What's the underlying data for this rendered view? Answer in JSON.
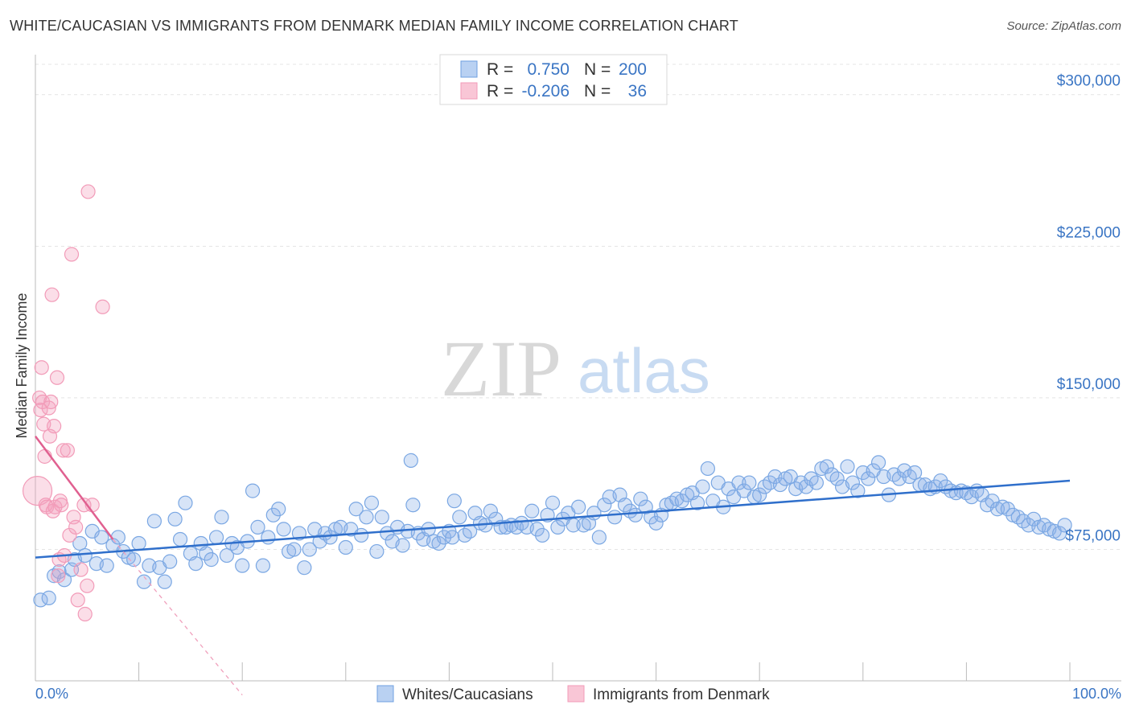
{
  "header": {
    "title": "WHITE/CAUCASIAN VS IMMIGRANTS FROM DENMARK MEDIAN FAMILY INCOME CORRELATION CHART",
    "source": "Source: ZipAtlas.com"
  },
  "watermark": {
    "zip": "ZIP",
    "atlas": "atlas"
  },
  "legend_top": {
    "rows": [
      {
        "r_label": "R =",
        "r_value": "0.750",
        "n_label": "N =",
        "n_value": "200"
      },
      {
        "r_label": "R =",
        "r_value": "-0.206",
        "n_label": "N =",
        "n_value": "36"
      }
    ]
  },
  "chart_data": {
    "type": "scatter",
    "ylabel": "Median Family Income",
    "xlim": [
      0,
      100
    ],
    "ylim": [
      10000,
      315000
    ],
    "y_tick_values": [
      75000,
      150000,
      225000,
      300000
    ],
    "y_tick_labels": [
      "$75,000",
      "$150,000",
      "$225,000",
      "$300,000"
    ],
    "x_tick_labels": [
      "0.0%",
      "100.0%"
    ],
    "grid": true,
    "legend_placement": "top-center",
    "series": [
      {
        "name": "Whites/Caucasians",
        "color": "#6fa0e0",
        "line_color": "#2f6fcb",
        "r": 0.75,
        "n": 200,
        "trend": {
          "x": [
            0,
            100
          ],
          "y": [
            71000,
            109000
          ]
        },
        "points": [
          [
            0.5,
            50000
          ],
          [
            1.3,
            51000
          ],
          [
            1.8,
            62000
          ],
          [
            2.3,
            64000
          ],
          [
            2.8,
            60000
          ],
          [
            3.5,
            65000
          ],
          [
            3.8,
            70000
          ],
          [
            4.3,
            78000
          ],
          [
            4.8,
            72000
          ],
          [
            5.5,
            84000
          ],
          [
            5.9,
            68000
          ],
          [
            6.4,
            81000
          ],
          [
            6.9,
            67000
          ],
          [
            7.5,
            77000
          ],
          [
            8,
            81000
          ],
          [
            8.5,
            74000
          ],
          [
            9,
            71000
          ],
          [
            9.5,
            70000
          ],
          [
            10,
            78000
          ],
          [
            10.5,
            59000
          ],
          [
            11,
            67000
          ],
          [
            11.5,
            89000
          ],
          [
            12,
            66000
          ],
          [
            12.5,
            59000
          ],
          [
            13,
            69000
          ],
          [
            13.5,
            90000
          ],
          [
            14,
            80000
          ],
          [
            14.5,
            98000
          ],
          [
            15,
            73000
          ],
          [
            15.5,
            68000
          ],
          [
            16,
            78000
          ],
          [
            16.5,
            73000
          ],
          [
            17,
            70000
          ],
          [
            17.5,
            81000
          ],
          [
            18,
            91000
          ],
          [
            18.5,
            72000
          ],
          [
            19,
            78000
          ],
          [
            19.5,
            76000
          ],
          [
            20,
            67000
          ],
          [
            20.5,
            79000
          ],
          [
            21,
            104000
          ],
          [
            21.5,
            86000
          ],
          [
            22,
            67000
          ],
          [
            22.5,
            81000
          ],
          [
            23,
            92000
          ],
          [
            23.5,
            95000
          ],
          [
            24,
            85000
          ],
          [
            24.5,
            74000
          ],
          [
            25,
            75000
          ],
          [
            25.5,
            83000
          ],
          [
            26,
            66000
          ],
          [
            26.5,
            75000
          ],
          [
            27,
            85000
          ],
          [
            27.5,
            79000
          ],
          [
            28,
            83000
          ],
          [
            28.5,
            81000
          ],
          [
            29,
            85000
          ],
          [
            29.5,
            86000
          ],
          [
            30,
            76000
          ],
          [
            30.5,
            85000
          ],
          [
            31,
            95000
          ],
          [
            31.5,
            82000
          ],
          [
            32,
            91000
          ],
          [
            32.5,
            98000
          ],
          [
            33,
            74000
          ],
          [
            33.5,
            91000
          ],
          [
            34,
            83000
          ],
          [
            34.5,
            79000
          ],
          [
            35,
            86000
          ],
          [
            35.5,
            77000
          ],
          [
            36,
            84000
          ],
          [
            36.5,
            97000
          ],
          [
            37,
            83000
          ],
          [
            37.5,
            80000
          ],
          [
            38,
            85000
          ],
          [
            38.5,
            79000
          ],
          [
            39,
            78000
          ],
          [
            39.5,
            81000
          ],
          [
            40,
            84000
          ],
          [
            40.5,
            99000
          ],
          [
            41,
            91000
          ],
          [
            41.5,
            82000
          ],
          [
            42,
            84000
          ],
          [
            42.5,
            93000
          ],
          [
            43,
            88000
          ],
          [
            43.5,
            87000
          ],
          [
            44,
            94000
          ],
          [
            44.5,
            90000
          ],
          [
            45,
            86000
          ],
          [
            45.5,
            86000
          ],
          [
            46,
            87000
          ],
          [
            46.5,
            86000
          ],
          [
            47,
            88000
          ],
          [
            47.5,
            86000
          ],
          [
            48,
            94000
          ],
          [
            48.5,
            85000
          ],
          [
            49,
            82000
          ],
          [
            49.5,
            92000
          ],
          [
            50,
            98000
          ],
          [
            50.5,
            86000
          ],
          [
            51,
            90000
          ],
          [
            51.5,
            93000
          ],
          [
            52,
            87000
          ],
          [
            52.5,
            96000
          ],
          [
            53,
            87000
          ],
          [
            53.5,
            88000
          ],
          [
            54,
            93000
          ],
          [
            54.5,
            81000
          ],
          [
            55,
            97000
          ],
          [
            55.5,
            101000
          ],
          [
            56,
            91000
          ],
          [
            56.5,
            102000
          ],
          [
            57,
            97000
          ],
          [
            57.5,
            94000
          ],
          [
            58,
            92000
          ],
          [
            58.5,
            100000
          ],
          [
            59,
            96000
          ],
          [
            59.5,
            91000
          ],
          [
            60,
            88000
          ],
          [
            60.5,
            92000
          ],
          [
            61,
            97000
          ],
          [
            61.5,
            98000
          ],
          [
            62,
            100000
          ],
          [
            62.5,
            99000
          ],
          [
            63,
            102000
          ],
          [
            63.5,
            103000
          ],
          [
            64,
            98000
          ],
          [
            64.5,
            106000
          ],
          [
            65,
            115000
          ],
          [
            65.5,
            99000
          ],
          [
            66,
            108000
          ],
          [
            66.5,
            96000
          ],
          [
            67,
            105000
          ],
          [
            67.5,
            101000
          ],
          [
            68,
            108000
          ],
          [
            68.5,
            104000
          ],
          [
            69,
            108000
          ],
          [
            69.5,
            101000
          ],
          [
            70,
            102000
          ],
          [
            70.5,
            106000
          ],
          [
            71,
            108000
          ],
          [
            71.5,
            111000
          ],
          [
            72,
            107000
          ],
          [
            72.5,
            110000
          ],
          [
            73,
            111000
          ],
          [
            73.5,
            105000
          ],
          [
            74,
            108000
          ],
          [
            74.5,
            106000
          ],
          [
            75,
            110000
          ],
          [
            75.5,
            108000
          ],
          [
            76,
            115000
          ],
          [
            76.5,
            116000
          ],
          [
            77,
            112000
          ],
          [
            77.5,
            110000
          ],
          [
            78,
            106000
          ],
          [
            78.5,
            116000
          ],
          [
            79,
            108000
          ],
          [
            79.5,
            104000
          ],
          [
            80,
            113000
          ],
          [
            80.5,
            110000
          ],
          [
            81,
            114000
          ],
          [
            81.5,
            118000
          ],
          [
            82,
            111000
          ],
          [
            82.5,
            102000
          ],
          [
            83,
            112000
          ],
          [
            83.5,
            110000
          ],
          [
            84,
            114000
          ],
          [
            84.5,
            111000
          ],
          [
            85,
            113000
          ],
          [
            85.5,
            107000
          ],
          [
            86,
            107000
          ],
          [
            86.5,
            105000
          ],
          [
            87,
            106000
          ],
          [
            87.5,
            109000
          ],
          [
            88,
            106000
          ],
          [
            88.5,
            104000
          ],
          [
            89,
            103000
          ],
          [
            89.5,
            104000
          ],
          [
            90,
            103000
          ],
          [
            90.5,
            101000
          ],
          [
            91,
            104000
          ],
          [
            91.5,
            102000
          ],
          [
            92,
            97000
          ],
          [
            92.5,
            99000
          ],
          [
            93,
            95000
          ],
          [
            93.5,
            96000
          ],
          [
            94,
            95000
          ],
          [
            94.5,
            92000
          ],
          [
            95,
            91000
          ],
          [
            95.5,
            89000
          ],
          [
            96,
            87000
          ],
          [
            96.5,
            90000
          ],
          [
            97,
            86000
          ],
          [
            97.5,
            87000
          ],
          [
            98,
            85000
          ],
          [
            98.5,
            84000
          ],
          [
            99,
            83000
          ],
          [
            99.5,
            87000
          ],
          [
            36.3,
            119000
          ],
          [
            40.3,
            81000
          ]
        ]
      },
      {
        "name": "Immigrants from Denmark",
        "color": "#f29bb8",
        "line_color": "#e06090",
        "r": -0.206,
        "n": 36,
        "trend": {
          "x": [
            0,
            7.5
          ],
          "y": [
            131000,
            80000
          ]
        },
        "trend_dashed": {
          "x": [
            7.5,
            20
          ],
          "y": [
            80000,
            3000
          ]
        },
        "points": [
          [
            0.2,
            104000
          ],
          [
            0.4,
            150000
          ],
          [
            0.5,
            144000
          ],
          [
            0.6,
            165000
          ],
          [
            0.7,
            148000
          ],
          [
            0.8,
            137000
          ],
          [
            0.9,
            121000
          ],
          [
            1,
            97000
          ],
          [
            1.1,
            96000
          ],
          [
            1.3,
            145000
          ],
          [
            1.4,
            131000
          ],
          [
            1.5,
            148000
          ],
          [
            1.6,
            201000
          ],
          [
            1.7,
            94000
          ],
          [
            1.8,
            136000
          ],
          [
            1.9,
            96000
          ],
          [
            2.1,
            160000
          ],
          [
            2.2,
            62000
          ],
          [
            2.3,
            70000
          ],
          [
            2.4,
            99000
          ],
          [
            2.5,
            97000
          ],
          [
            2.7,
            124000
          ],
          [
            2.8,
            72000
          ],
          [
            3.1,
            124000
          ],
          [
            3.3,
            82000
          ],
          [
            3.5,
            221000
          ],
          [
            3.7,
            91000
          ],
          [
            3.9,
            86000
          ],
          [
            4.1,
            50000
          ],
          [
            4.4,
            65000
          ],
          [
            4.7,
            97000
          ],
          [
            4.8,
            43000
          ],
          [
            5.0,
            57000
          ],
          [
            5.1,
            252000
          ],
          [
            5.5,
            97000
          ],
          [
            6.5,
            195000
          ]
        ]
      }
    ]
  },
  "legend_bottom": [
    "Whites/Caucasians",
    "Immigrants from Denmark"
  ]
}
